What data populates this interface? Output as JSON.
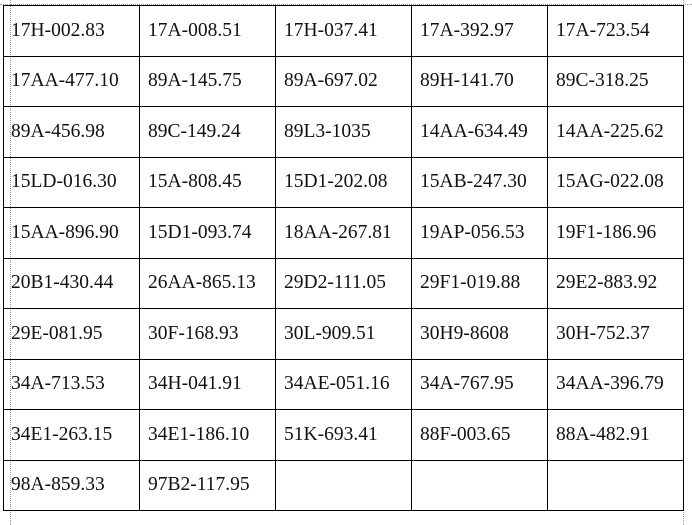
{
  "table": {
    "rows": [
      [
        "17H-002.83",
        "17A-008.51",
        "17H-037.41",
        "17A-392.97",
        "17A-723.54"
      ],
      [
        "17AA-477.10",
        "89A-145.75",
        "89A-697.02",
        "89H-141.70",
        "89C-318.25"
      ],
      [
        "89A-456.98",
        "89C-149.24",
        "89L3-1035",
        "14AA-634.49",
        "14AA-225.62"
      ],
      [
        "15LD-016.30",
        "15A-808.45",
        "15D1-202.08",
        "15AB-247.30",
        "15AG-022.08"
      ],
      [
        "15AA-896.90",
        "15D1-093.74",
        "18AA-267.81",
        "19AP-056.53",
        "19F1-186.96"
      ],
      [
        "20B1-430.44",
        "26AA-865.13",
        "29D2-111.05",
        "29F1-019.88",
        "29E2-883.92"
      ],
      [
        "29E-081.95",
        "30F-168.93",
        "30L-909.51",
        "30H9-8608",
        "30H-752.37"
      ],
      [
        "34A-713.53",
        "34H-041.91",
        "34AE-051.16",
        "34A-767.95",
        "34AA-396.79"
      ],
      [
        "34E1-263.15",
        "34E1-186.10",
        "51K-693.41",
        "88F-003.65",
        "88A-482.91"
      ],
      [
        "98A-859.33",
        "97B2-117.95",
        "",
        "",
        ""
      ]
    ]
  }
}
